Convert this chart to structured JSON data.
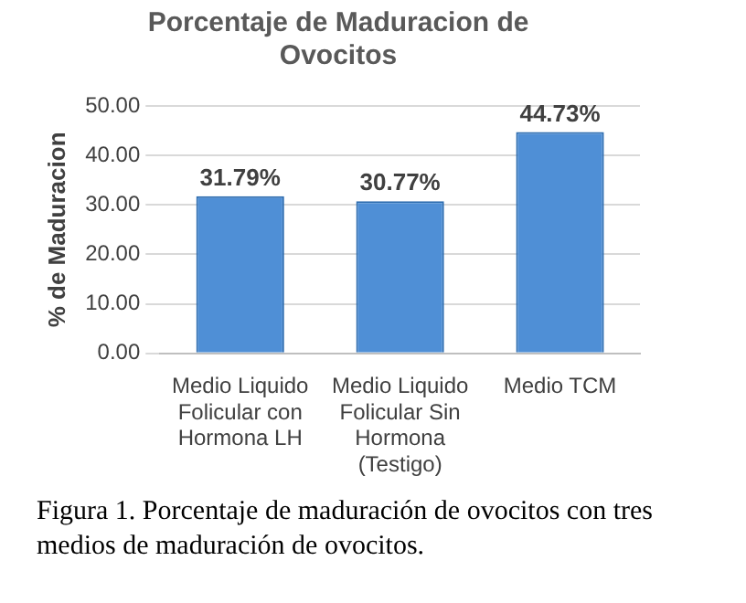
{
  "chart_data": {
    "type": "bar",
    "title": "Porcentaje de Maduracion de Ovocitos",
    "ylabel": "% de Maduracion",
    "categories": [
      "Medio Liquido Folicular con Hormona LH",
      "Medio Liquido Folicular Sin Hormona (Testigo)",
      "Medio TCM"
    ],
    "values": [
      31.79,
      30.77,
      44.73
    ],
    "color": "#4f8fd6",
    "value_labels": [
      "31.79%",
      "30.77%",
      "44.73%"
    ],
    "ylim": [
      0,
      50
    ],
    "yticks": [
      {
        "value": 0,
        "label": "0.00"
      },
      {
        "value": 10,
        "label": "10.00"
      },
      {
        "value": 20,
        "label": "20.00"
      },
      {
        "value": 30,
        "label": "30.00"
      },
      {
        "value": 40,
        "label": "40.00"
      },
      {
        "value": 50,
        "label": "50.00"
      }
    ],
    "grid": "y",
    "annotations": [
      "Figura 1. Porcentaje de maduración de ovocitos con tres medios de maduración de ovocitos."
    ]
  }
}
